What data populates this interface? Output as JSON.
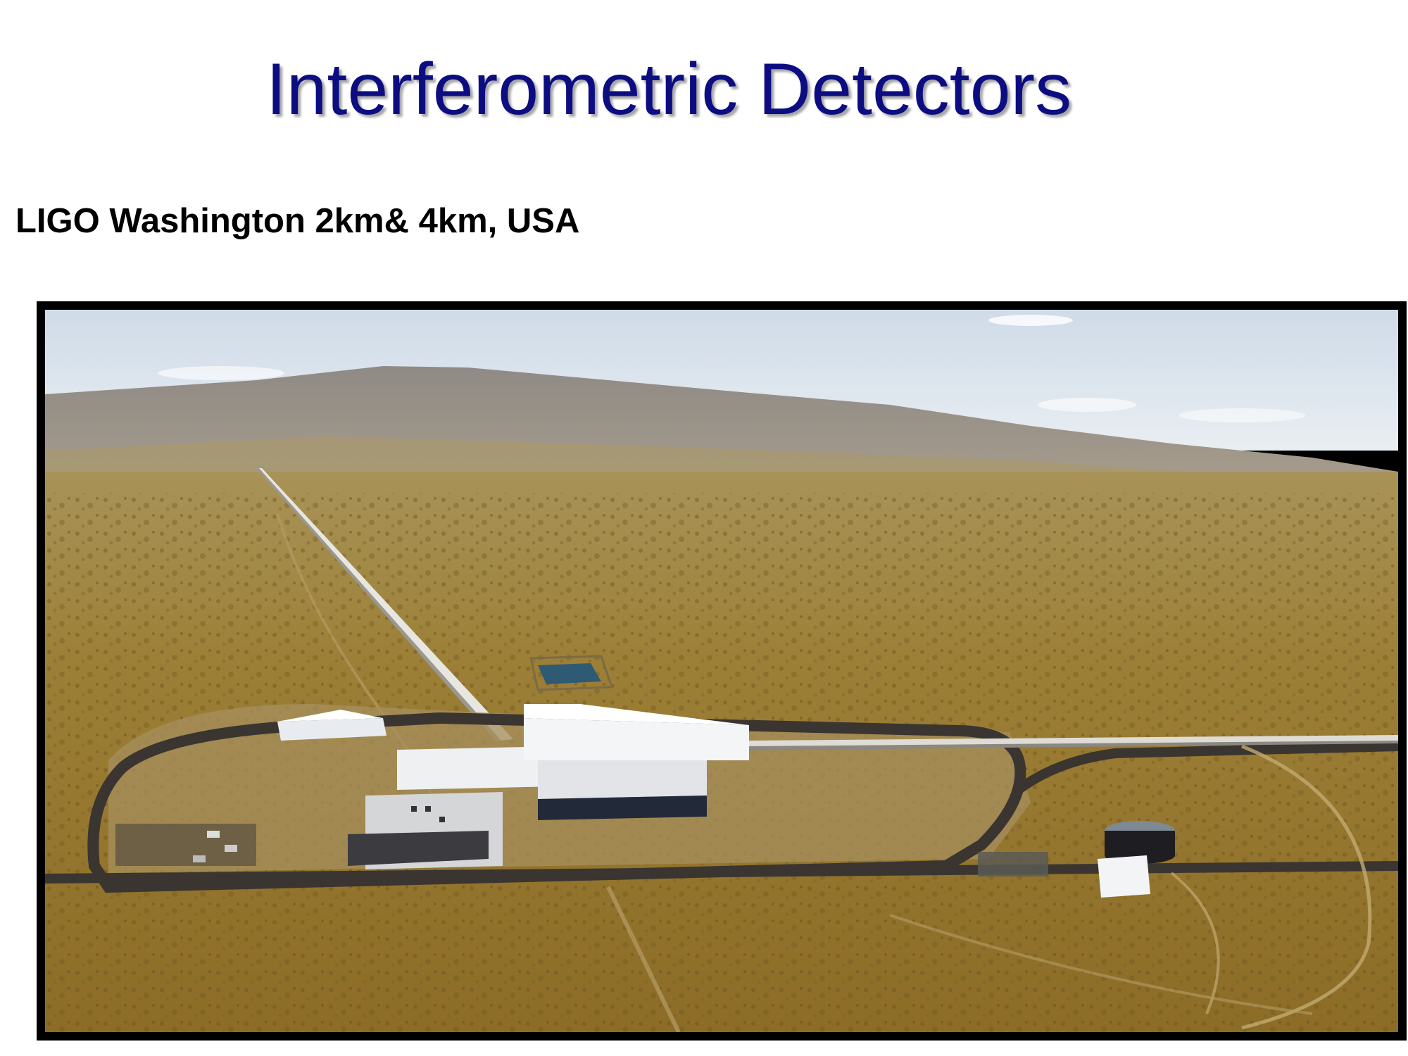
{
  "slide": {
    "title": "Interferometric Detectors",
    "subtitle": "LIGO Washington 2km& 4km, USA"
  },
  "photo": {
    "subject": "ligo-hanford-aerial-photo"
  },
  "colors": {
    "title": "#0d0d82",
    "subtitle": "#000000",
    "frame": "#000000"
  }
}
